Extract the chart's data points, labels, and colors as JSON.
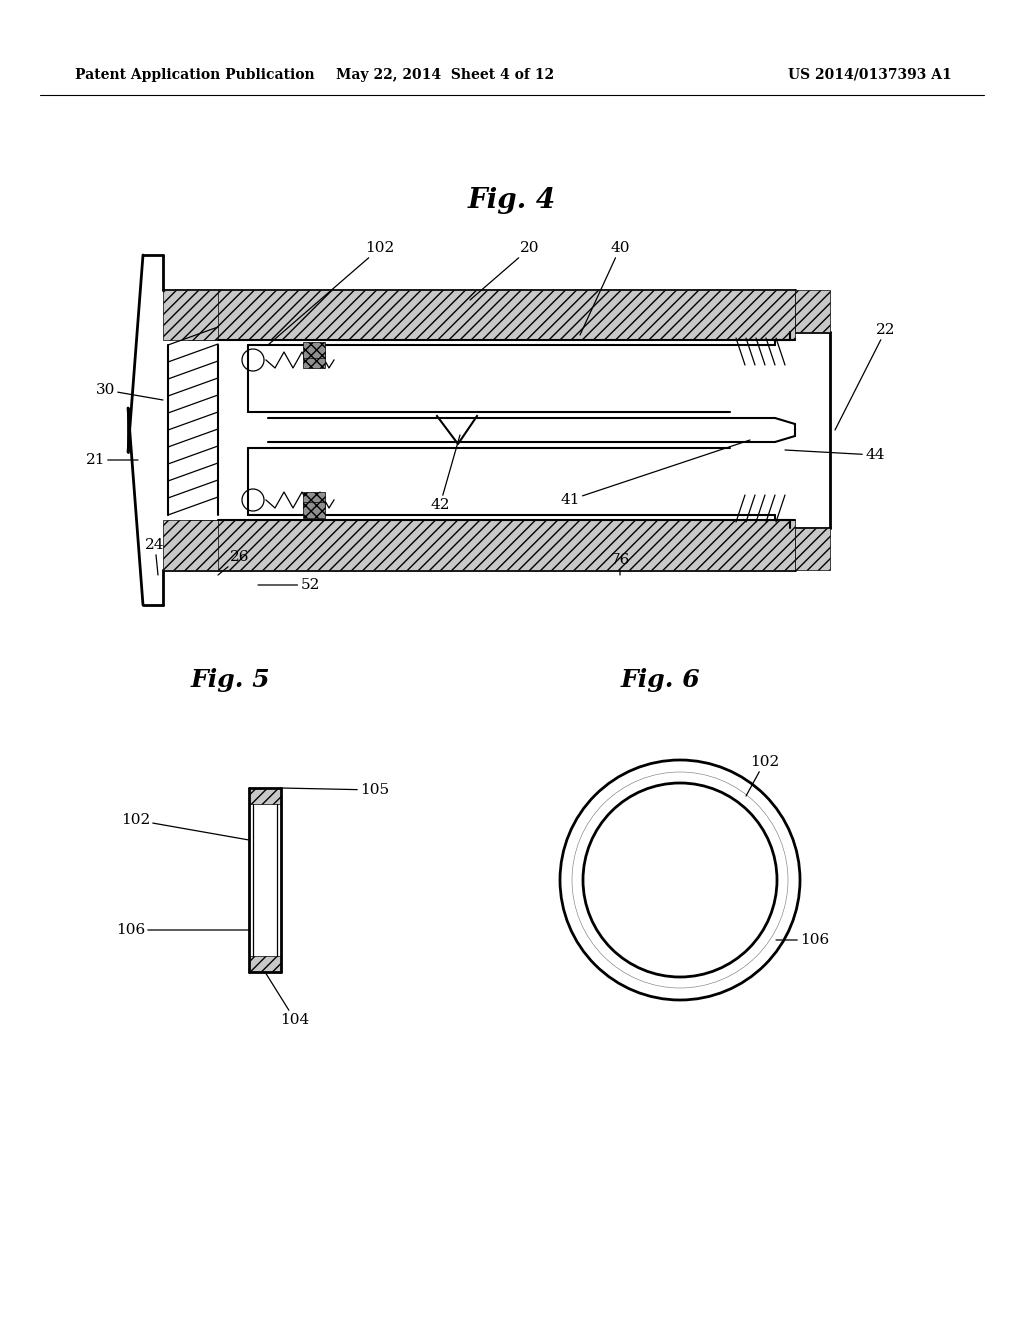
{
  "bg_color": "#ffffff",
  "line_color": "#000000",
  "header_left": "Patent Application Publication",
  "header_mid": "May 22, 2014  Sheet 4 of 12",
  "header_right": "US 2014/0137393 A1",
  "fig4_title": "Fig. 4",
  "fig5_title": "Fig. 5",
  "fig6_title": "Fig. 6"
}
